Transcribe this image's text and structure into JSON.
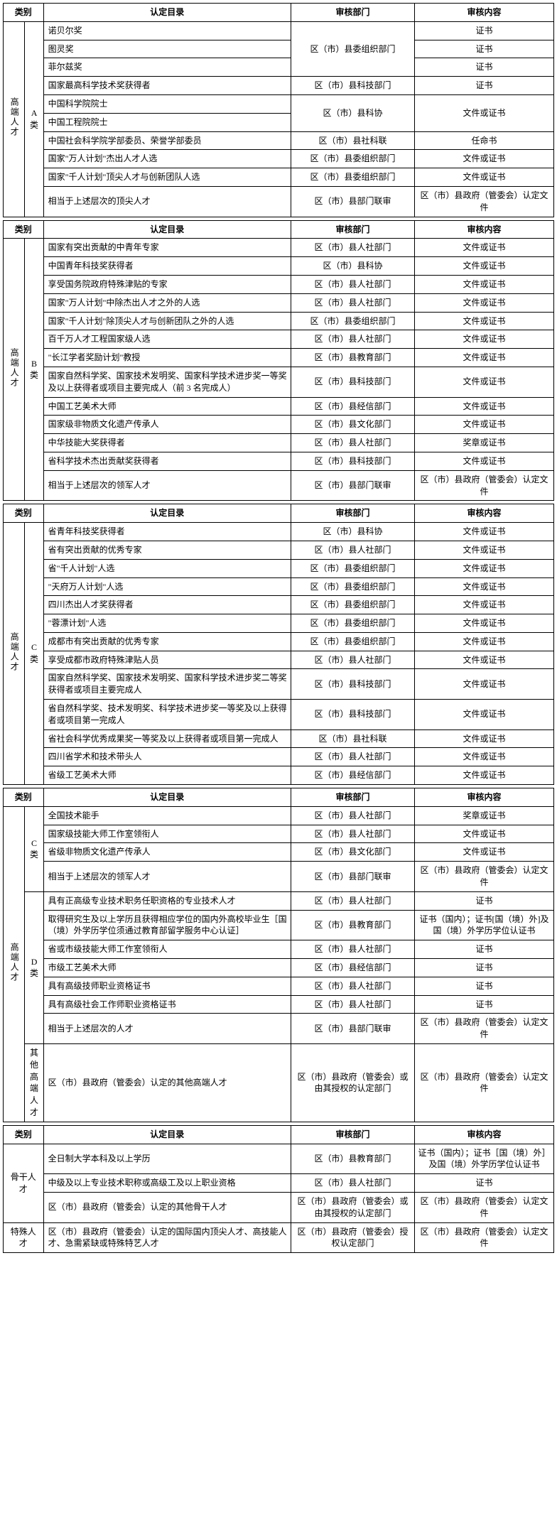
{
  "headers": {
    "category": "类别",
    "catalog": "认定目录",
    "dept": "审核部门",
    "content": "审核内容"
  },
  "table1": {
    "group_label": "高端人才",
    "sub_label": "A 类",
    "rows": [
      {
        "catalog": "诺贝尔奖",
        "dept": "区（市）县委组织部门",
        "content": "证书",
        "dept_rowspan": 3
      },
      {
        "catalog": "图灵奖",
        "content": "证书"
      },
      {
        "catalog": "菲尔兹奖",
        "content": "证书"
      },
      {
        "catalog": "国家最高科学技术奖获得者",
        "dept": "区（市）县科技部门",
        "content": "证书"
      },
      {
        "catalog": "中国科学院院士",
        "dept": "区（市）县科协",
        "content": "文件或证书",
        "dept_rowspan": 2,
        "content_rowspan": 2
      },
      {
        "catalog": "中国工程院院士"
      },
      {
        "catalog": "中国社会科学院学部委员、荣誉学部委员",
        "dept": "区（市）县社科联",
        "content": "任命书"
      },
      {
        "catalog": "国家\"万人计划\"杰出人才人选",
        "dept": "区（市）县委组织部门",
        "content": "文件或证书"
      },
      {
        "catalog": "国家\"千人计划\"顶尖人才与创新团队人选",
        "dept": "区（市）县委组织部门",
        "content": "文件或证书"
      },
      {
        "catalog": "相当于上述层次的顶尖人才",
        "dept": "区（市）县部门联审",
        "content": "区（市）县政府（管委会）认定文件"
      }
    ]
  },
  "table2": {
    "group_label": "高端人才",
    "sub_label": "B 类",
    "rows": [
      {
        "catalog": "国家有突出贡献的中青年专家",
        "dept": "区（市）县人社部门",
        "content": "文件或证书"
      },
      {
        "catalog": "中国青年科技奖获得者",
        "dept": "区（市）县科协",
        "content": "文件或证书"
      },
      {
        "catalog": "享受国务院政府特殊津贴的专家",
        "dept": "区（市）县人社部门",
        "content": "文件或证书"
      },
      {
        "catalog": "国家\"万人计划\"中除杰出人才之外的人选",
        "dept": "区（市）县人社部门",
        "content": "文件或证书"
      },
      {
        "catalog": "国家\"千人计划\"除顶尖人才与创新团队之外的人选",
        "dept": "区（市）县委组织部门",
        "content": "文件或证书"
      },
      {
        "catalog": "百千万人才工程国家级人选",
        "dept": "区（市）县人社部门",
        "content": "文件或证书"
      },
      {
        "catalog": "\"长江学者奖励计划\"教授",
        "dept": "区（市）县教育部门",
        "content": "文件或证书"
      },
      {
        "catalog": "国家自然科学奖、国家技术发明奖、国家科学技术进步奖一等奖及以上获得者或项目主要完成人（前 3 名完成人）",
        "dept": "区（市）县科技部门",
        "content": "文件或证书"
      },
      {
        "catalog": "中国工艺美术大师",
        "dept": "区（市）县经信部门",
        "content": "文件或证书"
      },
      {
        "catalog": "国家级非物质文化遗产传承人",
        "dept": "区（市）县文化部门",
        "content": "文件或证书"
      },
      {
        "catalog": "中华技能大奖获得者",
        "dept": "区（市）县人社部门",
        "content": "奖章或证书"
      },
      {
        "catalog": "省科学技术杰出贡献奖获得者",
        "dept": "区（市）县科技部门",
        "content": "文件或证书"
      },
      {
        "catalog": "相当于上述层次的领军人才",
        "dept": "区（市）县部门联审",
        "content": "区（市）县政府（管委会）认定文件"
      }
    ]
  },
  "table3": {
    "group_label": "高端人才",
    "sub_label": "C 类",
    "rows": [
      {
        "catalog": "省青年科技奖获得者",
        "dept": "区（市）县科协",
        "content": "文件或证书"
      },
      {
        "catalog": "省有突出贡献的优秀专家",
        "dept": "区（市）县人社部门",
        "content": "文件或证书"
      },
      {
        "catalog": "省\"千人计划\"人选",
        "dept": "区（市）县委组织部门",
        "content": "文件或证书"
      },
      {
        "catalog": "\"天府万人计划\"人选",
        "dept": "区（市）县委组织部门",
        "content": "文件或证书"
      },
      {
        "catalog": "四川杰出人才奖获得者",
        "dept": "区（市）县委组织部门",
        "content": "文件或证书"
      },
      {
        "catalog": "\"蓉漂计划\"人选",
        "dept": "区（市）县委组织部门",
        "content": "文件或证书"
      },
      {
        "catalog": "成都市有突出贡献的优秀专家",
        "dept": "区（市）县委组织部门",
        "content": "文件或证书"
      },
      {
        "catalog": "享受成都市政府特殊津贴人员",
        "dept": "区（市）县人社部门",
        "content": "文件或证书"
      },
      {
        "catalog": "国家自然科学奖、国家技术发明奖、国家科学技术进步奖二等奖获得者或项目主要完成人",
        "dept": "区（市）县科技部门",
        "content": "文件或证书"
      },
      {
        "catalog": "省自然科学奖、技术发明奖、科学技术进步奖一等奖及以上获得者或项目第一完成人",
        "dept": "区（市）县科技部门",
        "content": "文件或证书"
      },
      {
        "catalog": "省社会科学优秀成果奖一等奖及以上获得者或项目第一完成人",
        "dept": "区（市）县社科联",
        "content": "文件或证书"
      },
      {
        "catalog": "四川省学术和技术带头人",
        "dept": "区（市）县人社部门",
        "content": "文件或证书"
      },
      {
        "catalog": "省级工艺美术大师",
        "dept": "区（市）县经信部门",
        "content": "文件或证书"
      }
    ]
  },
  "table4": {
    "group_label": "高端人才",
    "sub1_label": "C 类",
    "sub2_label": "D 类",
    "sub3_label": "其他高端人才",
    "rowsC": [
      {
        "catalog": "全国技术能手",
        "dept": "区（市）县人社部门",
        "content": "奖章或证书"
      },
      {
        "catalog": "国家级技能大师工作室领衔人",
        "dept": "区（市）县人社部门",
        "content": "文件或证书"
      },
      {
        "catalog": "省级非物质文化遗产传承人",
        "dept": "区（市）县文化部门",
        "content": "文件或证书"
      },
      {
        "catalog": "相当于上述层次的领军人才",
        "dept": "区（市）县部门联审",
        "content": "区（市）县政府（管委会）认定文件"
      }
    ],
    "rowsD": [
      {
        "catalog": "具有正高级专业技术职务任职资格的专业技术人才",
        "dept": "区（市）县人社部门",
        "content": "证书"
      },
      {
        "catalog": "取得研究生及以上学历且获得相应学位的国内外高校毕业生［国（境）外学历学位须通过教育部留学服务中心认证］",
        "dept": "区（市）县教育部门",
        "content": "证书（国内）；证书[国（境）外]及国（境）外学历学位认证书"
      },
      {
        "catalog": "省或市级技能大师工作室领衔人",
        "dept": "区（市）县人社部门",
        "content": "证书"
      },
      {
        "catalog": "市级工艺美术大师",
        "dept": "区（市）县经信部门",
        "content": "证书"
      },
      {
        "catalog": "具有高级技师职业资格证书",
        "dept": "区（市）县人社部门",
        "content": "证书"
      },
      {
        "catalog": "具有高级社会工作师职业资格证书",
        "dept": "区（市）县人社部门",
        "content": "证书"
      },
      {
        "catalog": "相当于上述层次的人才",
        "dept": "区（市）县部门联审",
        "content": "区（市）县政府（管委会）认定文件"
      }
    ],
    "rowOther": {
      "catalog": "区（市）县政府（管委会）认定的其他高端人才",
      "dept": "区（市）县政府（管委会）或由其授权的认定部门",
      "content": "区（市）县政府（管委会）认定文件"
    }
  },
  "table5": {
    "group1": "骨干人才",
    "group2": "特殊人才",
    "rowsG": [
      {
        "catalog": "全日制大学本科及以上学历",
        "dept": "区（市）县教育部门",
        "content": "证书（国内）；证书［国（境）外］及国（境）外学历学位认证书"
      },
      {
        "catalog": "中级及以上专业技术职称或高级工及以上职业资格",
        "dept": "区（市）县人社部门",
        "content": "证书"
      },
      {
        "catalog": "区（市）县政府（管委会）认定的其他骨干人才",
        "dept": "区（市）县政府（管委会）或由其授权的认定部门",
        "content": "区（市）县政府（管委会）认定文件"
      }
    ],
    "rowT": {
      "catalog": "区（市）县政府（管委会）认定的国际国内顶尖人才、高技能人才、急需紧缺或特殊特艺人才",
      "dept": "区（市）县政府（管委会）授权认定部门",
      "content": "区（市）县政府（管委会）认定文件"
    }
  }
}
